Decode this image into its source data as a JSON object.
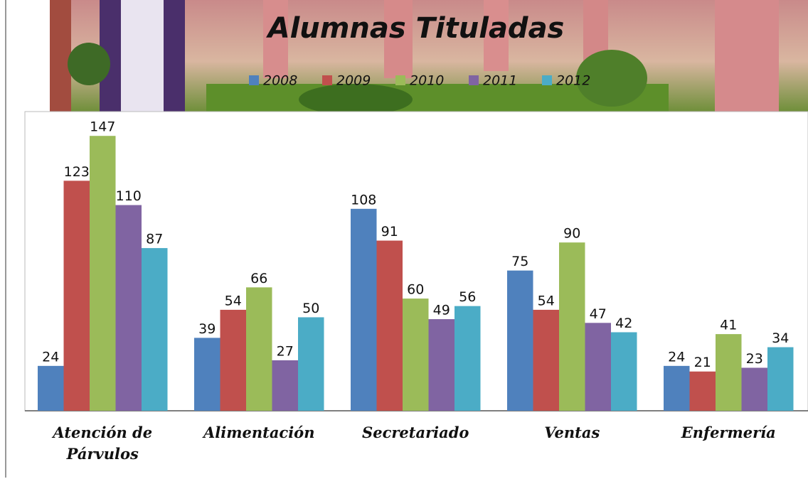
{
  "chart_data": {
    "type": "bar",
    "title": "Alumnas Tituladas",
    "categories": [
      "Atención de Párvulos",
      "Alimentación",
      "Secretariado",
      "Ventas",
      "Enfermería"
    ],
    "series": [
      {
        "name": "2008",
        "color": "#4f81bd",
        "values": [
          24,
          39,
          108,
          75,
          24
        ]
      },
      {
        "name": "2009",
        "color": "#c0504d",
        "values": [
          123,
          54,
          91,
          54,
          21
        ]
      },
      {
        "name": "2010",
        "color": "#9bbb59",
        "values": [
          147,
          66,
          60,
          90,
          41
        ]
      },
      {
        "name": "2011",
        "color": "#8064a2",
        "values": [
          110,
          27,
          49,
          47,
          23
        ]
      },
      {
        "name": "2012",
        "color": "#4bacc6",
        "values": [
          87,
          50,
          56,
          42,
          34
        ]
      }
    ],
    "ylim": [
      0,
      160
    ]
  }
}
